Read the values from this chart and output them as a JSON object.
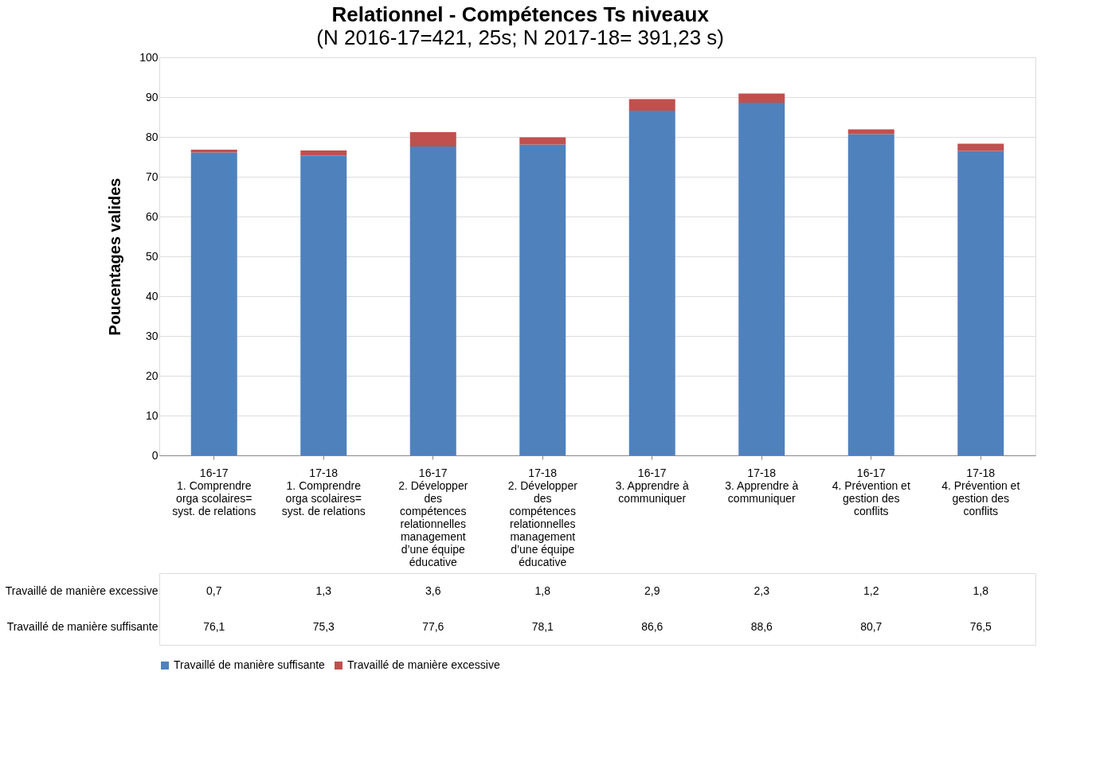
{
  "chart_data": {
    "type": "bar",
    "stacked": true,
    "title": "Relationnel - Compétences Ts niveaux",
    "subtitle": "(N 2016-17=421, 25s; N 2017-18= 391,23 s)",
    "ylabel": "Poucentages valides",
    "categories": [
      "16-17\n1. Comprendre\norga scolaires=\nsyst. de relations",
      "17-18\n1. Comprendre\norga scolaires=\nsyst. de relations",
      "16-17\n2. Développer\ndes\ncompétences\nrelationnelles\nmanagement\nd’une équipe\néducative",
      "17-18\n2. Développer\ndes\ncompétences\nrelationnelles\nmanagement\nd’une équipe\néducative",
      "16-17\n3. Apprendre à\ncommuniquer",
      "17-18\n3. Apprendre à\ncommuniquer",
      "16-17\n4. Prévention et\ngestion des\nconflits",
      "17-18\n4. Prévention et\ngestion des\nconflits"
    ],
    "series": [
      {
        "name": "Travaillé de manière suffisante",
        "color": "#4f81bd",
        "values": [
          76.1,
          75.3,
          77.6,
          78.1,
          86.6,
          88.6,
          80.7,
          76.5
        ],
        "value_labels": [
          "76,1",
          "75,3",
          "77,6",
          "78,1",
          "86,6",
          "88,6",
          "80,7",
          "76,5"
        ]
      },
      {
        "name": "Travaillé de manière excessive",
        "color": "#c0504d",
        "values": [
          0.7,
          1.3,
          3.6,
          1.8,
          2.9,
          2.3,
          1.2,
          1.8
        ],
        "value_labels": [
          "0,7",
          "1,3",
          "3,6",
          "1,8",
          "2,9",
          "2,3",
          "1,2",
          "1,8"
        ]
      }
    ],
    "ylim": [
      0,
      100
    ],
    "yticks": [
      0,
      10,
      20,
      30,
      40,
      50,
      60,
      70,
      80,
      90,
      100
    ],
    "grid": "y",
    "legend": "bottom"
  }
}
